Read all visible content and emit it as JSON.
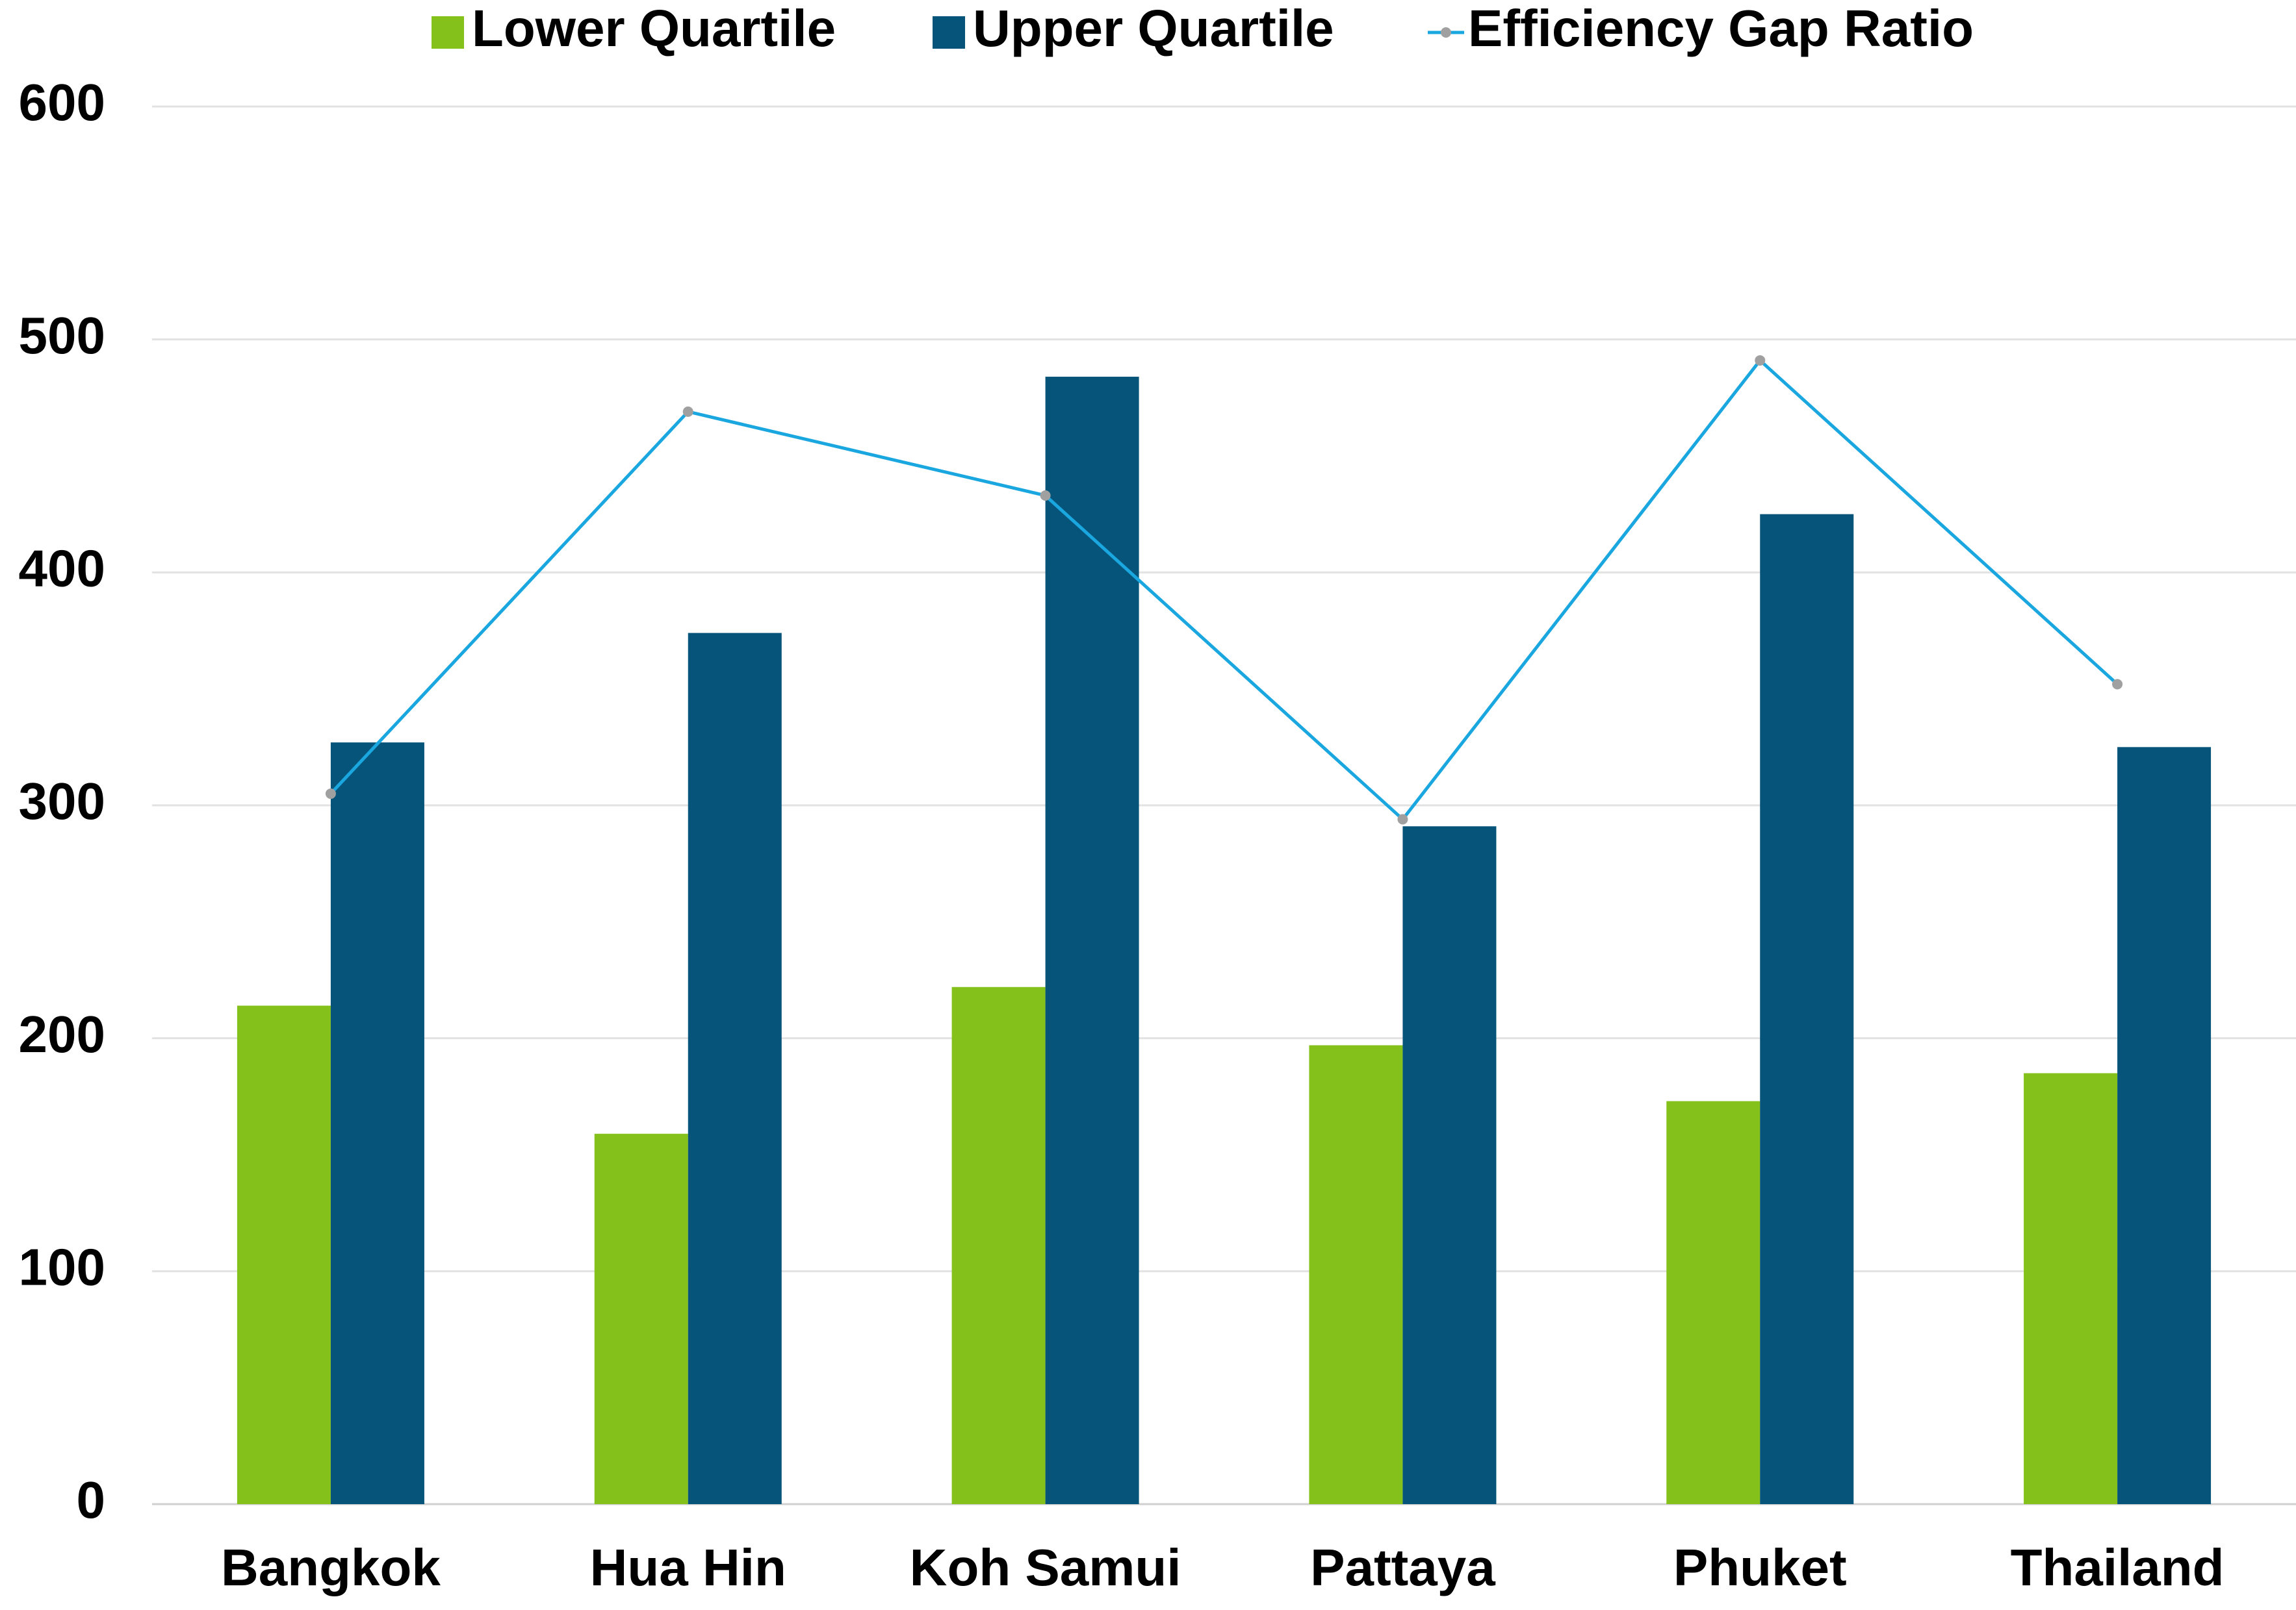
{
  "chart_data": {
    "type": "bar",
    "categories": [
      "Bangkok",
      "Hua Hin",
      "Koh Samui",
      "Pattaya",
      "Phuket",
      "Thailand"
    ],
    "series": [
      {
        "name": "Lower Quartile",
        "color": "#84c11a",
        "type": "bar",
        "values": [
          214,
          159,
          222,
          197,
          173,
          185
        ]
      },
      {
        "name": "Upper Quartile",
        "color": "#06547a",
        "type": "bar",
        "values": [
          327,
          374,
          484,
          291,
          425,
          325
        ]
      },
      {
        "name": "Efficiency Gap Ratio",
        "color": "#1aa7e0",
        "type": "line",
        "values": [
          305,
          469,
          433,
          294,
          491,
          352
        ]
      }
    ],
    "ylim": [
      0,
      600
    ],
    "yticks": [
      0,
      100,
      200,
      300,
      400,
      500,
      600
    ],
    "grid": true,
    "legend": "top"
  }
}
